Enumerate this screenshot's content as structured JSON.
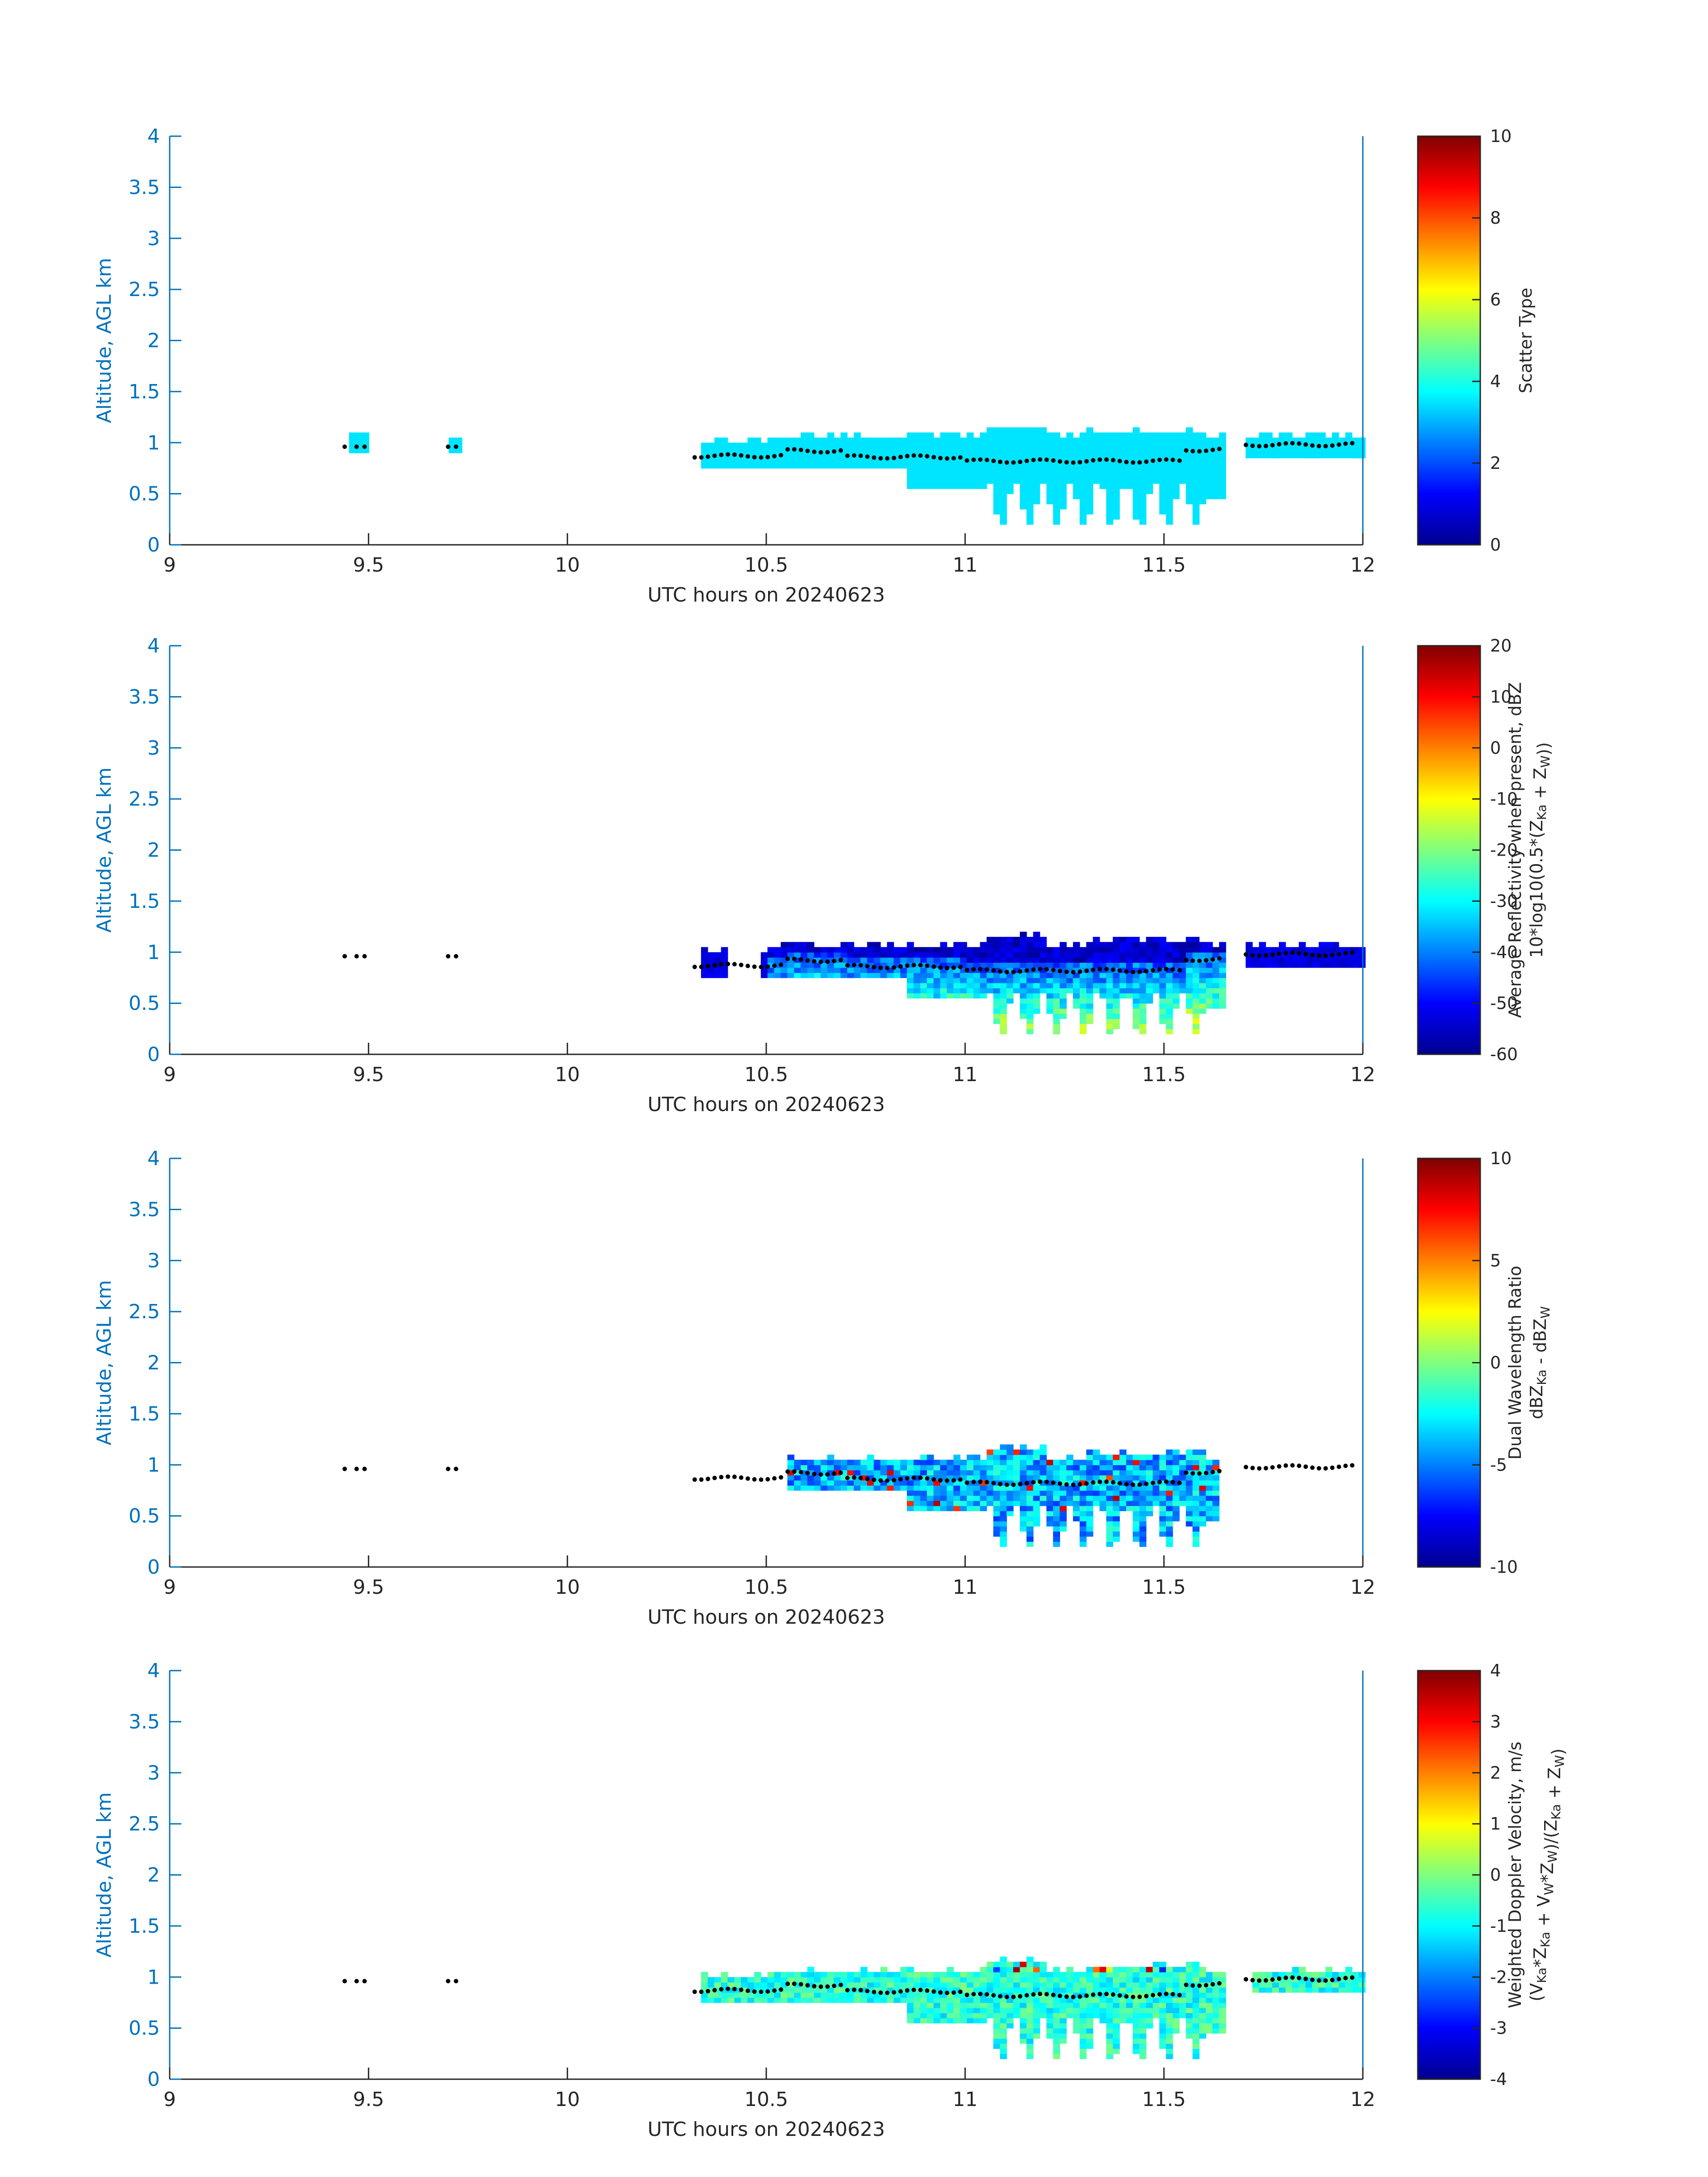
{
  "figure": {
    "xlabel": "UTC hours on 20240623",
    "ylabel": "Altitude, AGL km"
  },
  "chart_data": [
    {
      "type": "heatmap",
      "xlim": [
        9,
        12
      ],
      "ylim": [
        0,
        4
      ],
      "xticks": [
        "9",
        "9.5",
        "10",
        "10.5",
        "11",
        "11.5",
        "12"
      ],
      "yticks": [
        "0",
        "0.5",
        "1",
        "1.5",
        "2",
        "2.5",
        "3",
        "3.5",
        "4"
      ],
      "xlabel": "UTC hours on 20240623",
      "ylabel": "Altitude, AGL km",
      "colorbar": {
        "min": 0,
        "max": 10,
        "ticks": [
          "0",
          "2",
          "4",
          "6",
          "8",
          "10"
        ],
        "label_lines": [
          "Scatter Type"
        ]
      },
      "field": "scatter",
      "cloud_base_dots": true
    },
    {
      "type": "heatmap",
      "xlim": [
        9,
        12
      ],
      "ylim": [
        0,
        4
      ],
      "xticks": [
        "9",
        "9.5",
        "10",
        "10.5",
        "11",
        "11.5",
        "12"
      ],
      "yticks": [
        "0",
        "0.5",
        "1",
        "1.5",
        "2",
        "2.5",
        "3",
        "3.5",
        "4"
      ],
      "xlabel": "UTC hours on 20240623",
      "ylabel": "Altitude, AGL km",
      "colorbar": {
        "min": -60,
        "max": 20,
        "ticks": [
          "-60",
          "-50",
          "-40",
          "-30",
          "-20",
          "-10",
          "0",
          "10",
          "20"
        ],
        "label_lines": [
          "Average Reflectivity when present, dBZ",
          "10*log10(0.5*(Z_Ka + Z_W))"
        ]
      },
      "field": "reflectivity",
      "cloud_base_dots": true
    },
    {
      "type": "heatmap",
      "xlim": [
        9,
        12
      ],
      "ylim": [
        0,
        4
      ],
      "xticks": [
        "9",
        "9.5",
        "10",
        "10.5",
        "11",
        "11.5",
        "12"
      ],
      "yticks": [
        "0",
        "0.5",
        "1",
        "1.5",
        "2",
        "2.5",
        "3",
        "3.5",
        "4"
      ],
      "xlabel": "UTC hours on 20240623",
      "ylabel": "Altitude, AGL km",
      "colorbar": {
        "min": -10,
        "max": 10,
        "ticks": [
          "-10",
          "-5",
          "0",
          "5",
          "10"
        ],
        "label_lines": [
          "Dual Wavelength Ratio",
          "dBZ_Ka - dBZ_W"
        ]
      },
      "field": "dwr",
      "cloud_base_dots": true
    },
    {
      "type": "heatmap",
      "xlim": [
        9,
        12
      ],
      "ylim": [
        0,
        4
      ],
      "xticks": [
        "9",
        "9.5",
        "10",
        "10.5",
        "11",
        "11.5",
        "12"
      ],
      "yticks": [
        "0",
        "0.5",
        "1",
        "1.5",
        "2",
        "2.5",
        "3",
        "3.5",
        "4"
      ],
      "xlabel": "UTC hours on 20240623",
      "ylabel": "Altitude, AGL km",
      "colorbar": {
        "min": -4,
        "max": 4,
        "ticks": [
          "-4",
          "-3",
          "-2",
          "-1",
          "0",
          "1",
          "2",
          "3",
          "4"
        ],
        "label_lines": [
          "Weighted Doppler Velocity, m/s",
          "(V_Ka*Z_Ka + V_W*Z_W)/(Z_Ka + Z_W)"
        ]
      },
      "field": "velocity",
      "cloud_base_dots": true
    }
  ]
}
